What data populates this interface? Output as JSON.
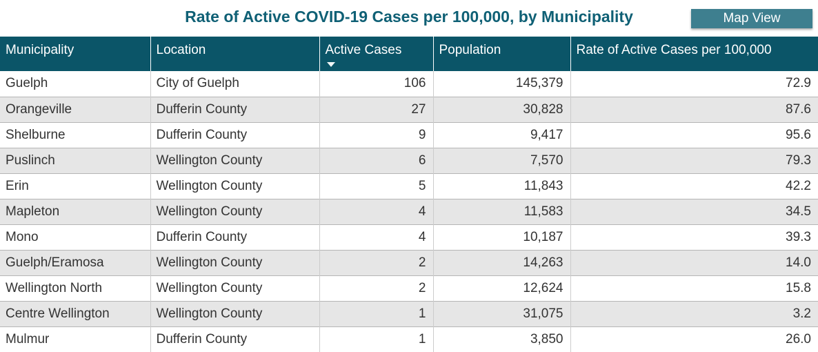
{
  "header": {
    "title": "Rate of Active COVID-19 Cases per 100,000, by Municipality",
    "map_view_button_label": "Map View"
  },
  "table": {
    "columns": [
      {
        "label": "Municipality",
        "align": "left",
        "sorted": false
      },
      {
        "label": "Location",
        "align": "left",
        "sorted": false
      },
      {
        "label": "Active Cases",
        "align": "right",
        "sorted": true,
        "sort_direction": "desc",
        "sort_icon": "triangle-down-icon"
      },
      {
        "label": "Population",
        "align": "right",
        "sorted": false
      },
      {
        "label": "Rate of Active Cases per 100,000",
        "align": "right",
        "sorted": false
      }
    ],
    "rows": [
      [
        "Guelph",
        "City of Guelph",
        "106",
        "145,379",
        "72.9"
      ],
      [
        "Orangeville",
        "Dufferin County",
        "27",
        "30,828",
        "87.6"
      ],
      [
        "Shelburne",
        "Dufferin County",
        "9",
        "9,417",
        "95.6"
      ],
      [
        "Puslinch",
        "Wellington County",
        "6",
        "7,570",
        "79.3"
      ],
      [
        "Erin",
        "Wellington County",
        "5",
        "11,843",
        "42.2"
      ],
      [
        "Mapleton",
        "Wellington County",
        "4",
        "11,583",
        "34.5"
      ],
      [
        "Mono",
        "Dufferin County",
        "4",
        "10,187",
        "39.3"
      ],
      [
        "Guelph/Eramosa",
        "Wellington County",
        "2",
        "14,263",
        "14.0"
      ],
      [
        "Wellington North",
        "Wellington County",
        "2",
        "12,624",
        "15.8"
      ],
      [
        "Centre Wellington",
        "Wellington County",
        "1",
        "31,075",
        "3.2"
      ],
      [
        "Mulmur",
        "Dufferin County",
        "1",
        "3,850",
        "26.0"
      ]
    ]
  },
  "chart_data": {
    "type": "table",
    "title": "Rate of Active COVID-19 Cases per 100,000, by Municipality",
    "columns": [
      "Municipality",
      "Location",
      "Active Cases",
      "Population",
      "Rate of Active Cases per 100,000"
    ],
    "sort": {
      "column": "Active Cases",
      "direction": "desc"
    },
    "rows": [
      [
        "Guelph",
        "City of Guelph",
        106,
        145379,
        72.9
      ],
      [
        "Orangeville",
        "Dufferin County",
        27,
        30828,
        87.6
      ],
      [
        "Shelburne",
        "Dufferin County",
        9,
        9417,
        95.6
      ],
      [
        "Puslinch",
        "Wellington County",
        6,
        7570,
        79.3
      ],
      [
        "Erin",
        "Wellington County",
        5,
        11843,
        42.2
      ],
      [
        "Mapleton",
        "Wellington County",
        4,
        11583,
        34.5
      ],
      [
        "Mono",
        "Dufferin County",
        4,
        10187,
        39.3
      ],
      [
        "Guelph/Eramosa",
        "Wellington County",
        2,
        14263,
        14.0
      ],
      [
        "Wellington North",
        "Wellington County",
        2,
        12624,
        15.8
      ],
      [
        "Centre Wellington",
        "Wellington County",
        1,
        31075,
        3.2
      ],
      [
        "Mulmur",
        "Dufferin County",
        1,
        3850,
        26.0
      ]
    ]
  },
  "colors": {
    "header_bg": "#0b5568",
    "title_color": "#0f6075",
    "button_bg": "#3e7f8f",
    "alt_row_bg": "#e6e6e6",
    "row_border": "#b5b5b5",
    "col_border": "#cccccc",
    "body_text": "#333333",
    "header_text": "#ffffff"
  }
}
